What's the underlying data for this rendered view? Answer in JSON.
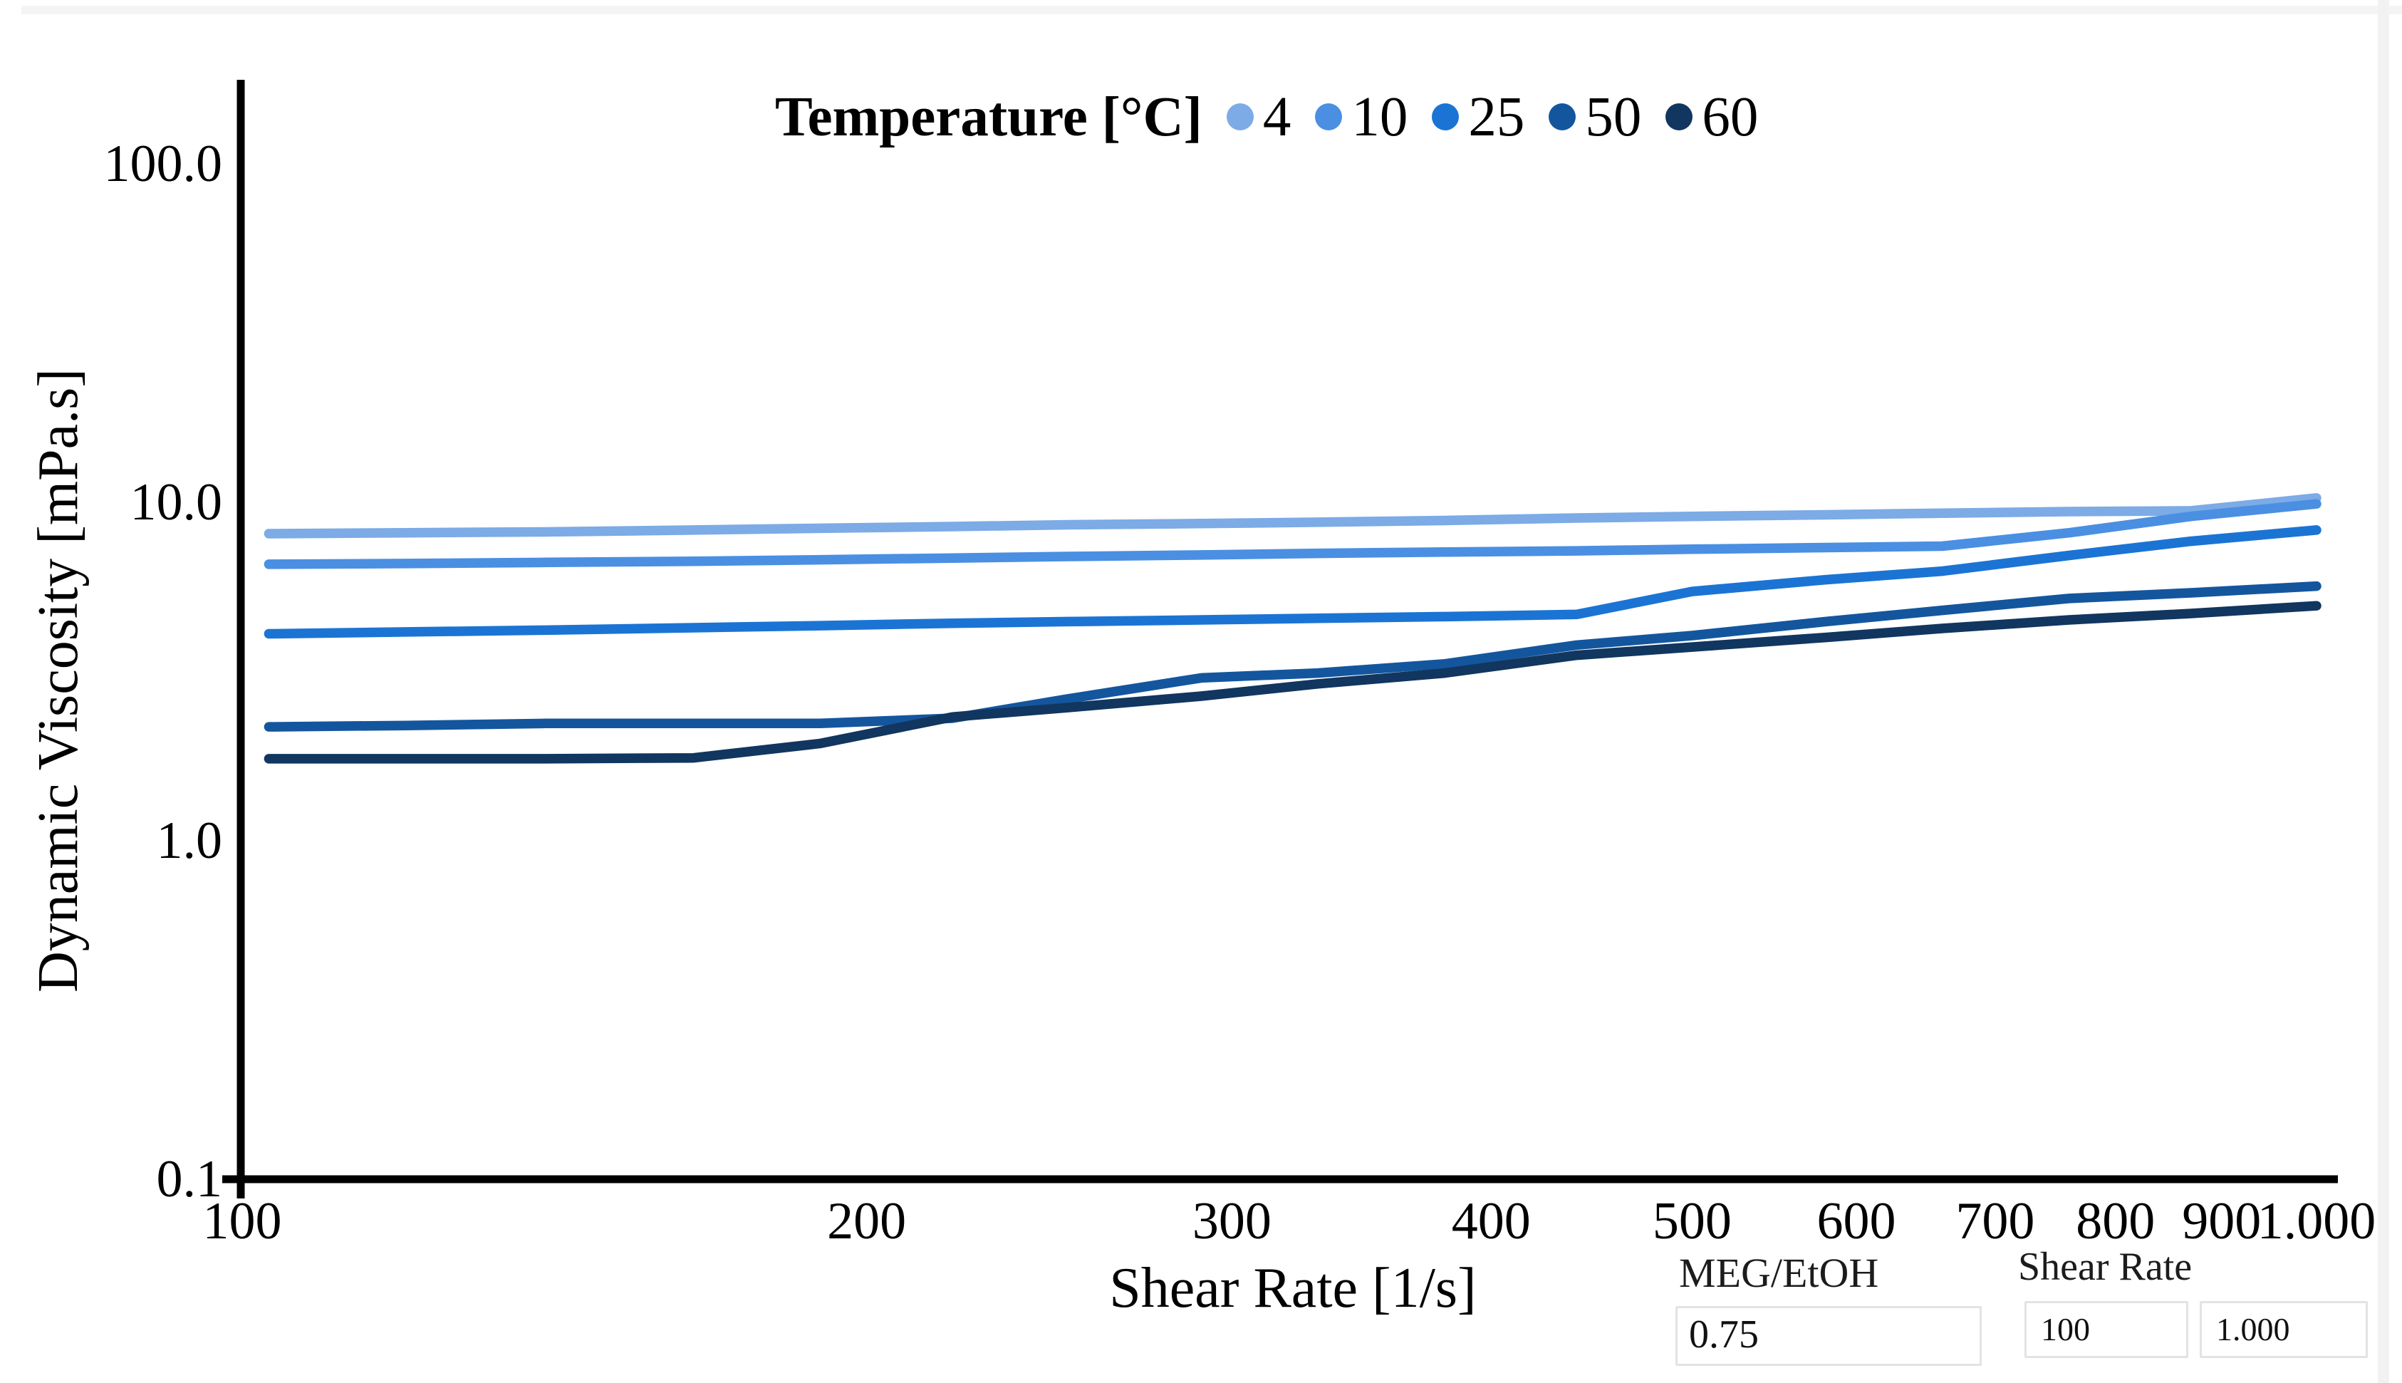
{
  "legend": {
    "title": "Temperature [°C]"
  },
  "axes": {
    "x_title": "Shear Rate [1/s]",
    "y_title": "Dynamic Viscosity [mPa.s]",
    "x_tick_labels": [
      "100",
      "200",
      "300",
      "400",
      "500",
      "600",
      "700",
      "800",
      "900",
      "1.000"
    ],
    "x_tick_values": [
      100,
      200,
      300,
      400,
      500,
      600,
      700,
      800,
      900,
      1000
    ],
    "y_tick_labels": [
      "100.0",
      "10.0",
      "1.0",
      "0.1"
    ],
    "y_tick_values": [
      100,
      10,
      1,
      0.1
    ]
  },
  "chart_data": {
    "type": "line",
    "title": "",
    "xlabel": "Shear Rate [1/s]",
    "ylabel": "Dynamic Viscosity [mPa.s]",
    "x_scale": "log",
    "y_scale": "log",
    "xlim": [
      100,
      1000
    ],
    "ylim": [
      0.1,
      175
    ],
    "grid": false,
    "legend_title": "Temperature [°C]",
    "legend_position": "top",
    "x": [
      103,
      120,
      140,
      165,
      190,
      220,
      250,
      290,
      330,
      380,
      440,
      500,
      580,
      660,
      760,
      870,
      1000
    ],
    "series": [
      {
        "name": "4",
        "color": "#7cabe6",
        "values": [
          8.0,
          8.05,
          8.1,
          8.2,
          8.3,
          8.4,
          8.5,
          8.57,
          8.65,
          8.75,
          8.9,
          9.0,
          9.1,
          9.2,
          9.3,
          9.35,
          10.2
        ]
      },
      {
        "name": "10",
        "color": "#4a8fe2",
        "values": [
          6.5,
          6.53,
          6.58,
          6.63,
          6.7,
          6.78,
          6.85,
          6.92,
          7.0,
          7.06,
          7.12,
          7.2,
          7.28,
          7.35,
          8.05,
          9.0,
          9.8
        ]
      },
      {
        "name": "25",
        "color": "#1b74d4",
        "values": [
          4.05,
          4.1,
          4.15,
          4.22,
          4.28,
          4.35,
          4.4,
          4.45,
          4.5,
          4.55,
          4.62,
          5.4,
          5.85,
          6.2,
          6.9,
          7.6,
          8.2
        ]
      },
      {
        "name": "50",
        "color": "#14569e",
        "values": [
          2.15,
          2.17,
          2.2,
          2.2,
          2.2,
          2.28,
          2.6,
          3.0,
          3.1,
          3.3,
          3.75,
          4.0,
          4.4,
          4.75,
          5.15,
          5.35,
          5.6
        ]
      },
      {
        "name": "60",
        "color": "#11365f",
        "values": [
          1.73,
          1.73,
          1.73,
          1.74,
          1.92,
          2.3,
          2.45,
          2.65,
          2.88,
          3.1,
          3.5,
          3.7,
          3.95,
          4.2,
          4.45,
          4.65,
          4.9
        ]
      }
    ]
  },
  "controls": {
    "meg_label": "MEG/EtOH",
    "meg_value": "0.75",
    "shear_label": "Shear Rate",
    "shear_min_value": "100",
    "shear_max_value": "1.000"
  }
}
